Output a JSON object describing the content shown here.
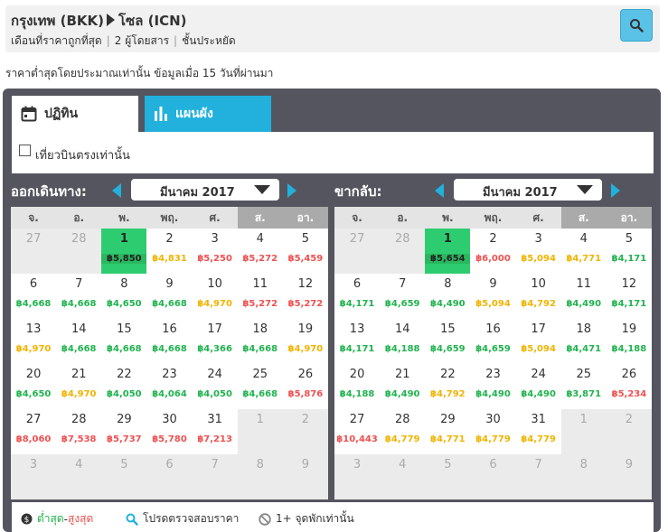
{
  "header": {
    "origin": "กรุงเทพ (BKK)",
    "destination": "โซล (ICN)",
    "period": "เดือนที่ราคาถูกที่สุด",
    "passengers": "2 ผู้โดยสาร",
    "cabin": "ชั้นประหยัด"
  },
  "notice": "ราคาต่ำสุดโดยประมาณเท่านั้น ข้อมูลเมื่อ 15 วันที่ผ่านมา",
  "tabs": {
    "calendar": "ปฏิทิน",
    "chart": "แผนผัง"
  },
  "filter": {
    "direct_only": "เที่ยวบินตรงเท่านั้น",
    "checked": false
  },
  "weekdays": [
    "จ.",
    "อ.",
    "พ.",
    "พฤ.",
    "ศ.",
    "ส.",
    "อา."
  ],
  "colors": {
    "low": "#20b34e",
    "mid": "#f0b400",
    "high": "#f05050",
    "selected": "#2ecc71",
    "accent": "#21b1dc"
  },
  "outbound": {
    "title": "ออกเดินทาง:",
    "month": "มีนาคม 2017",
    "weeks": [
      [
        {
          "d": "27",
          "t": "e"
        },
        {
          "d": "28",
          "t": "e"
        },
        {
          "d": "1",
          "p": "฿5,850",
          "t": "s"
        },
        {
          "d": "2",
          "p": "฿4,831",
          "c": "yellow"
        },
        {
          "d": "3",
          "p": "฿5,250",
          "c": "red"
        },
        {
          "d": "4",
          "p": "฿5,272",
          "c": "red"
        },
        {
          "d": "5",
          "p": "฿5,459",
          "c": "red"
        }
      ],
      [
        {
          "d": "6",
          "p": "฿4,668",
          "c": "green"
        },
        {
          "d": "7",
          "p": "฿4,668",
          "c": "green"
        },
        {
          "d": "8",
          "p": "฿4,650",
          "c": "green"
        },
        {
          "d": "9",
          "p": "฿4,668",
          "c": "green"
        },
        {
          "d": "10",
          "p": "฿4,970",
          "c": "yellow"
        },
        {
          "d": "11",
          "p": "฿5,272",
          "c": "red"
        },
        {
          "d": "12",
          "p": "฿5,272",
          "c": "red"
        }
      ],
      [
        {
          "d": "13",
          "p": "฿4,970",
          "c": "yellow"
        },
        {
          "d": "14",
          "p": "฿4,668",
          "c": "green"
        },
        {
          "d": "15",
          "p": "฿4,668",
          "c": "green"
        },
        {
          "d": "16",
          "p": "฿4,668",
          "c": "green"
        },
        {
          "d": "17",
          "p": "฿4,366",
          "c": "green"
        },
        {
          "d": "18",
          "p": "฿4,668",
          "c": "green"
        },
        {
          "d": "19",
          "p": "฿4,970",
          "c": "yellow"
        }
      ],
      [
        {
          "d": "20",
          "p": "฿4,650",
          "c": "green"
        },
        {
          "d": "21",
          "p": "฿4,970",
          "c": "yellow"
        },
        {
          "d": "22",
          "p": "฿4,050",
          "c": "green"
        },
        {
          "d": "23",
          "p": "฿4,064",
          "c": "green"
        },
        {
          "d": "24",
          "p": "฿4,050",
          "c": "green"
        },
        {
          "d": "25",
          "p": "฿4,668",
          "c": "green"
        },
        {
          "d": "26",
          "p": "฿5,876",
          "c": "red"
        }
      ],
      [
        {
          "d": "27",
          "p": "฿8,060",
          "c": "red"
        },
        {
          "d": "28",
          "p": "฿7,538",
          "c": "red"
        },
        {
          "d": "29",
          "p": "฿5,737",
          "c": "red"
        },
        {
          "d": "30",
          "p": "฿5,780",
          "c": "red"
        },
        {
          "d": "31",
          "p": "฿7,213",
          "c": "red"
        },
        {
          "d": "1",
          "t": "e"
        },
        {
          "d": "2",
          "t": "e"
        }
      ],
      [
        {
          "d": "3",
          "t": "f"
        },
        {
          "d": "4",
          "t": "f"
        },
        {
          "d": "5",
          "t": "f"
        },
        {
          "d": "6",
          "t": "f"
        },
        {
          "d": "7",
          "t": "f"
        },
        {
          "d": "8",
          "t": "f"
        },
        {
          "d": "9",
          "t": "f"
        }
      ]
    ]
  },
  "return": {
    "title": "ขากลับ:",
    "month": "มีนาคม 2017",
    "weeks": [
      [
        {
          "d": "27",
          "t": "e"
        },
        {
          "d": "28",
          "t": "e"
        },
        {
          "d": "1",
          "p": "฿5,654",
          "t": "s"
        },
        {
          "d": "2",
          "p": "฿6,000",
          "c": "red"
        },
        {
          "d": "3",
          "p": "฿5,094",
          "c": "yellow"
        },
        {
          "d": "4",
          "p": "฿4,771",
          "c": "yellow"
        },
        {
          "d": "5",
          "p": "฿4,171",
          "c": "green"
        }
      ],
      [
        {
          "d": "6",
          "p": "฿4,171",
          "c": "green"
        },
        {
          "d": "7",
          "p": "฿4,659",
          "c": "green"
        },
        {
          "d": "8",
          "p": "฿4,490",
          "c": "green"
        },
        {
          "d": "9",
          "p": "฿5,094",
          "c": "yellow"
        },
        {
          "d": "10",
          "p": "฿4,792",
          "c": "yellow"
        },
        {
          "d": "11",
          "p": "฿4,490",
          "c": "green"
        },
        {
          "d": "12",
          "p": "฿4,171",
          "c": "green"
        }
      ],
      [
        {
          "d": "13",
          "p": "฿4,171",
          "c": "green"
        },
        {
          "d": "14",
          "p": "฿4,188",
          "c": "green"
        },
        {
          "d": "15",
          "p": "฿4,659",
          "c": "green"
        },
        {
          "d": "16",
          "p": "฿4,659",
          "c": "green"
        },
        {
          "d": "17",
          "p": "฿5,094",
          "c": "yellow"
        },
        {
          "d": "18",
          "p": "฿4,471",
          "c": "green"
        },
        {
          "d": "19",
          "p": "฿4,188",
          "c": "green"
        }
      ],
      [
        {
          "d": "20",
          "p": "฿4,188",
          "c": "green"
        },
        {
          "d": "21",
          "p": "฿4,490",
          "c": "green"
        },
        {
          "d": "22",
          "p": "฿4,792",
          "c": "yellow"
        },
        {
          "d": "23",
          "p": "฿4,490",
          "c": "green"
        },
        {
          "d": "24",
          "p": "฿4,490",
          "c": "green"
        },
        {
          "d": "25",
          "p": "฿3,871",
          "c": "green"
        },
        {
          "d": "26",
          "p": "฿5,234",
          "c": "red"
        }
      ],
      [
        {
          "d": "27",
          "p": "฿10,443",
          "c": "red"
        },
        {
          "d": "28",
          "p": "฿4,779",
          "c": "yellow"
        },
        {
          "d": "29",
          "p": "฿4,771",
          "c": "yellow"
        },
        {
          "d": "30",
          "p": "฿4,779",
          "c": "yellow"
        },
        {
          "d": "31",
          "p": "฿4,779",
          "c": "yellow"
        },
        {
          "d": "1",
          "t": "e"
        },
        {
          "d": "2",
          "t": "e"
        }
      ],
      [
        {
          "d": "3",
          "t": "f"
        },
        {
          "d": "4",
          "t": "f"
        },
        {
          "d": "5",
          "t": "f"
        },
        {
          "d": "6",
          "t": "f"
        },
        {
          "d": "7",
          "t": "f"
        },
        {
          "d": "8",
          "t": "f"
        },
        {
          "d": "9",
          "t": "f"
        }
      ]
    ]
  },
  "legend": {
    "low": "ต่ำสุด",
    "dash": " - ",
    "high": "สูงสุด",
    "verify": "โปรดตรวจสอบราคา",
    "stops": "1+ จุดพักเท่านั้น"
  }
}
